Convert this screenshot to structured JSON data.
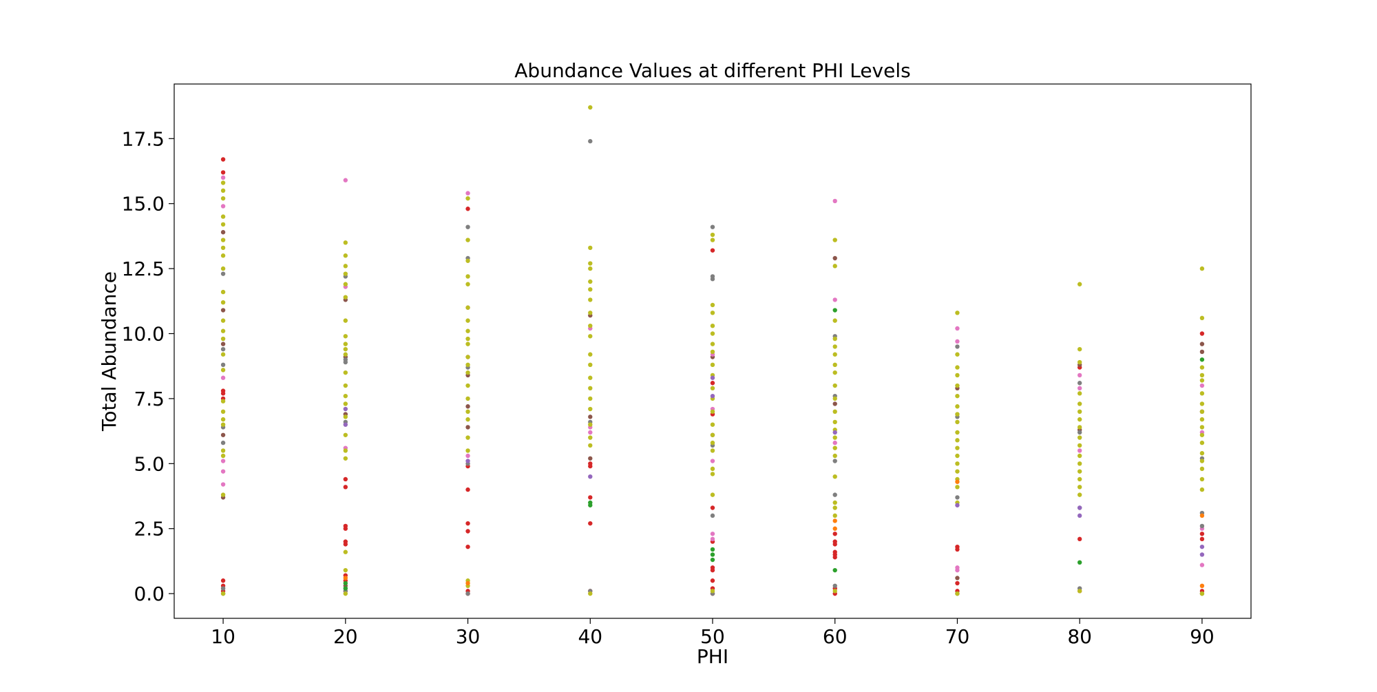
{
  "chart_data": {
    "type": "scatter",
    "title": "Abundance Values at different PHI Levels",
    "xlabel": "PHI",
    "ylabel": "Total Abundance",
    "xlim": [
      6,
      94
    ],
    "ylim": [
      -0.95,
      19.6
    ],
    "x_ticks": [
      10,
      20,
      30,
      40,
      50,
      60,
      70,
      80,
      90
    ],
    "x_tick_labels": [
      "10",
      "20",
      "30",
      "40",
      "50",
      "60",
      "70",
      "80",
      "90"
    ],
    "y_ticks": [
      0.0,
      2.5,
      5.0,
      7.5,
      10.0,
      12.5,
      15.0,
      17.5
    ],
    "y_tick_labels": [
      "0.0",
      "2.5",
      "5.0",
      "7.5",
      "10.0",
      "12.5",
      "15.0",
      "17.5"
    ],
    "grid": false,
    "legend": "none",
    "colors": [
      "#d62728",
      "#8c564b",
      "#e377c2",
      "#7f7f7f",
      "#bcbd22",
      "#2ca02c",
      "#ff7f0e",
      "#9467bd"
    ],
    "series": [
      {
        "color": "#d62728",
        "x": [
          10,
          10,
          10,
          10,
          10,
          10,
          10,
          10,
          20,
          20,
          20,
          20,
          20,
          20,
          20,
          20,
          20,
          30,
          30,
          30,
          30,
          30,
          30,
          30,
          30,
          40,
          40,
          40,
          40,
          40,
          50,
          50,
          50,
          50,
          50,
          50,
          50,
          50,
          50,
          50,
          60,
          60,
          60,
          60,
          60,
          60,
          60,
          60,
          70,
          70,
          70,
          70,
          80,
          80,
          80,
          90,
          90,
          90,
          90
        ],
        "y": [
          16.7,
          16.2,
          7.8,
          7.7,
          7.5,
          0.5,
          0.3,
          0.1,
          4.4,
          4.1,
          2.6,
          2.5,
          2.0,
          1.9,
          0.7,
          0.5,
          0.1,
          14.8,
          4.9,
          4.0,
          2.7,
          2.4,
          1.8,
          0.1,
          0.0,
          5.0,
          4.9,
          3.7,
          2.7,
          0.1,
          13.2,
          3.3,
          2.0,
          1.0,
          0.9,
          0.5,
          0.2,
          0.0,
          8.1,
          6.9,
          2.3,
          2.0,
          1.9,
          1.6,
          1.5,
          1.4,
          0.2,
          0.0,
          1.8,
          1.7,
          0.4,
          0.1,
          8.7,
          2.1,
          0.1,
          10.0,
          2.3,
          2.1,
          0.1
        ]
      },
      {
        "color": "#8c564b",
        "x": [
          10,
          10,
          10,
          10,
          10,
          20,
          20,
          20,
          20,
          30,
          30,
          30,
          40,
          40,
          40,
          50,
          50,
          60,
          60,
          70,
          70,
          80,
          80,
          90,
          90,
          90
        ],
        "y": [
          13.9,
          10.9,
          9.6,
          6.1,
          3.7,
          11.3,
          9.1,
          6.9,
          0.3,
          8.4,
          7.2,
          6.4,
          10.7,
          6.8,
          5.2,
          9.1,
          6.1,
          12.9,
          7.3,
          7.9,
          0.6,
          8.8,
          6.3,
          9.6,
          9.3,
          7.0
        ]
      },
      {
        "color": "#e377c2",
        "x": [
          10,
          10,
          10,
          10,
          10,
          10,
          20,
          20,
          20,
          30,
          30,
          30,
          30,
          40,
          40,
          40,
          50,
          50,
          50,
          50,
          50,
          60,
          60,
          60,
          70,
          70,
          70,
          70,
          80,
          80,
          80,
          90,
          90,
          90,
          90
        ],
        "y": [
          16.0,
          14.9,
          8.3,
          5.1,
          4.7,
          4.2,
          15.9,
          11.8,
          5.6,
          15.4,
          11.0,
          9.1,
          5.3,
          10.2,
          6.4,
          6.2,
          9.2,
          7.1,
          5.1,
          2.3,
          2.1,
          15.1,
          11.3,
          5.8,
          10.2,
          9.7,
          1.0,
          0.9,
          8.4,
          7.9,
          5.5,
          8.0,
          6.2,
          2.5,
          1.1
        ]
      },
      {
        "color": "#7f7f7f",
        "x": [
          10,
          10,
          10,
          10,
          10,
          10,
          10,
          20,
          20,
          20,
          20,
          20,
          30,
          30,
          30,
          30,
          30,
          40,
          40,
          40,
          50,
          50,
          50,
          50,
          50,
          50,
          60,
          60,
          60,
          60,
          60,
          70,
          70,
          70,
          70,
          80,
          80,
          80,
          80,
          90,
          90,
          90,
          90
        ],
        "y": [
          12.3,
          9.4,
          8.8,
          6.4,
          5.8,
          0.2,
          0.0,
          12.2,
          9.0,
          8.9,
          6.6,
          0.1,
          14.1,
          12.9,
          8.7,
          5.0,
          0.0,
          17.4,
          6.6,
          0.1,
          14.1,
          12.2,
          12.1,
          5.7,
          3.0,
          0.0,
          9.9,
          7.6,
          5.1,
          3.8,
          0.3,
          9.5,
          6.8,
          3.7,
          0.0,
          8.1,
          6.2,
          3.3,
          0.2,
          5.2,
          3.1,
          2.6,
          0.0
        ]
      },
      {
        "color": "#bcbd22",
        "x": [
          10,
          10,
          10,
          10,
          10,
          10,
          10,
          10,
          10,
          10,
          10,
          10,
          10,
          10,
          10,
          10,
          10,
          10,
          10,
          10,
          10,
          10,
          10,
          10,
          20,
          20,
          20,
          20,
          20,
          20,
          20,
          20,
          20,
          20,
          20,
          20,
          20,
          20,
          20,
          20,
          20,
          20,
          20,
          20,
          20,
          20,
          30,
          30,
          30,
          30,
          30,
          30,
          30,
          30,
          30,
          30,
          30,
          30,
          30,
          30,
          30,
          30,
          30,
          30,
          30,
          30,
          30,
          40,
          40,
          40,
          40,
          40,
          40,
          40,
          40,
          40,
          40,
          40,
          40,
          40,
          40,
          40,
          40,
          40,
          40,
          40,
          40,
          50,
          50,
          50,
          50,
          50,
          50,
          50,
          50,
          50,
          50,
          50,
          50,
          50,
          50,
          50,
          50,
          50,
          50,
          50,
          50,
          50,
          60,
          60,
          60,
          60,
          60,
          60,
          60,
          60,
          60,
          60,
          60,
          60,
          60,
          60,
          60,
          60,
          60,
          60,
          60,
          60,
          60,
          70,
          70,
          70,
          70,
          70,
          70,
          70,
          70,
          70,
          70,
          70,
          70,
          70,
          70,
          70,
          70,
          70,
          70,
          70,
          80,
          80,
          80,
          80,
          80,
          80,
          80,
          80,
          80,
          80,
          80,
          80,
          80,
          80,
          80,
          80,
          80,
          90,
          90,
          90,
          90,
          90,
          90,
          90,
          90,
          90,
          90,
          90,
          90,
          90,
          90,
          90,
          90,
          90,
          90
        ],
        "y": [
          15.8,
          15.5,
          15.2,
          14.5,
          14.2,
          13.6,
          13.3,
          13.0,
          12.5,
          11.6,
          11.2,
          10.5,
          10.1,
          9.8,
          9.2,
          8.6,
          7.4,
          7.0,
          6.7,
          6.5,
          5.5,
          5.3,
          3.8,
          0.0,
          13.5,
          13.0,
          12.6,
          12.3,
          11.9,
          11.4,
          10.5,
          9.9,
          9.6,
          9.4,
          9.2,
          8.5,
          8.0,
          7.6,
          7.3,
          6.8,
          6.1,
          5.5,
          5.2,
          1.6,
          0.9,
          0.0,
          15.2,
          13.6,
          12.8,
          12.2,
          11.9,
          11.0,
          10.5,
          10.1,
          9.8,
          9.6,
          9.1,
          8.8,
          8.5,
          8.0,
          7.5,
          7.0,
          6.7,
          6.0,
          5.5,
          0.5,
          0.3,
          18.7,
          13.3,
          12.7,
          12.5,
          12.0,
          11.7,
          11.3,
          10.8,
          10.3,
          9.9,
          9.2,
          8.8,
          8.3,
          7.9,
          7.5,
          7.1,
          6.5,
          6.0,
          5.7,
          0.0,
          13.8,
          13.6,
          11.1,
          10.8,
          10.3,
          10.0,
          9.6,
          9.3,
          8.8,
          8.4,
          7.9,
          7.5,
          7.0,
          6.5,
          6.1,
          5.8,
          5.5,
          4.8,
          4.6,
          3.8,
          0.1,
          13.6,
          12.6,
          10.5,
          9.8,
          9.5,
          9.2,
          8.8,
          8.5,
          8.0,
          7.5,
          7.0,
          6.6,
          6.3,
          6.0,
          5.6,
          5.3,
          4.5,
          3.5,
          3.3,
          3.0,
          0.1,
          10.8,
          9.2,
          8.7,
          8.4,
          8.0,
          7.6,
          7.2,
          6.9,
          6.6,
          6.2,
          5.9,
          5.6,
          5.3,
          5.0,
          4.7,
          4.4,
          4.1,
          3.5,
          0.0,
          11.9,
          9.4,
          8.9,
          7.7,
          7.3,
          7.0,
          6.7,
          6.4,
          6.0,
          5.7,
          5.3,
          5.0,
          4.7,
          4.4,
          4.1,
          3.8,
          0.1,
          12.5,
          10.6,
          8.7,
          8.4,
          8.2,
          7.7,
          7.3,
          7.0,
          6.7,
          6.4,
          6.1,
          5.8,
          5.4,
          5.1,
          4.8,
          4.4,
          4.0,
          0.0
        ]
      },
      {
        "color": "#2ca02c",
        "x": [
          20,
          20,
          40,
          40,
          50,
          50,
          50,
          60,
          60,
          80,
          90
        ],
        "y": [
          0.4,
          0.2,
          3.5,
          3.4,
          1.7,
          1.5,
          1.3,
          10.9,
          0.9,
          1.2,
          9.0
        ]
      },
      {
        "color": "#ff7f0e",
        "x": [
          20,
          30,
          60,
          60,
          70,
          90,
          90
        ],
        "y": [
          0.6,
          0.4,
          2.8,
          2.5,
          4.3,
          0.3,
          3.0
        ]
      },
      {
        "color": "#9467bd",
        "x": [
          20,
          20,
          30,
          40,
          50,
          50,
          60,
          70,
          80,
          80,
          90,
          90
        ],
        "y": [
          7.1,
          6.5,
          5.1,
          4.5,
          8.3,
          7.6,
          6.2,
          3.4,
          3.3,
          3.0,
          1.8,
          1.5
        ]
      }
    ]
  }
}
